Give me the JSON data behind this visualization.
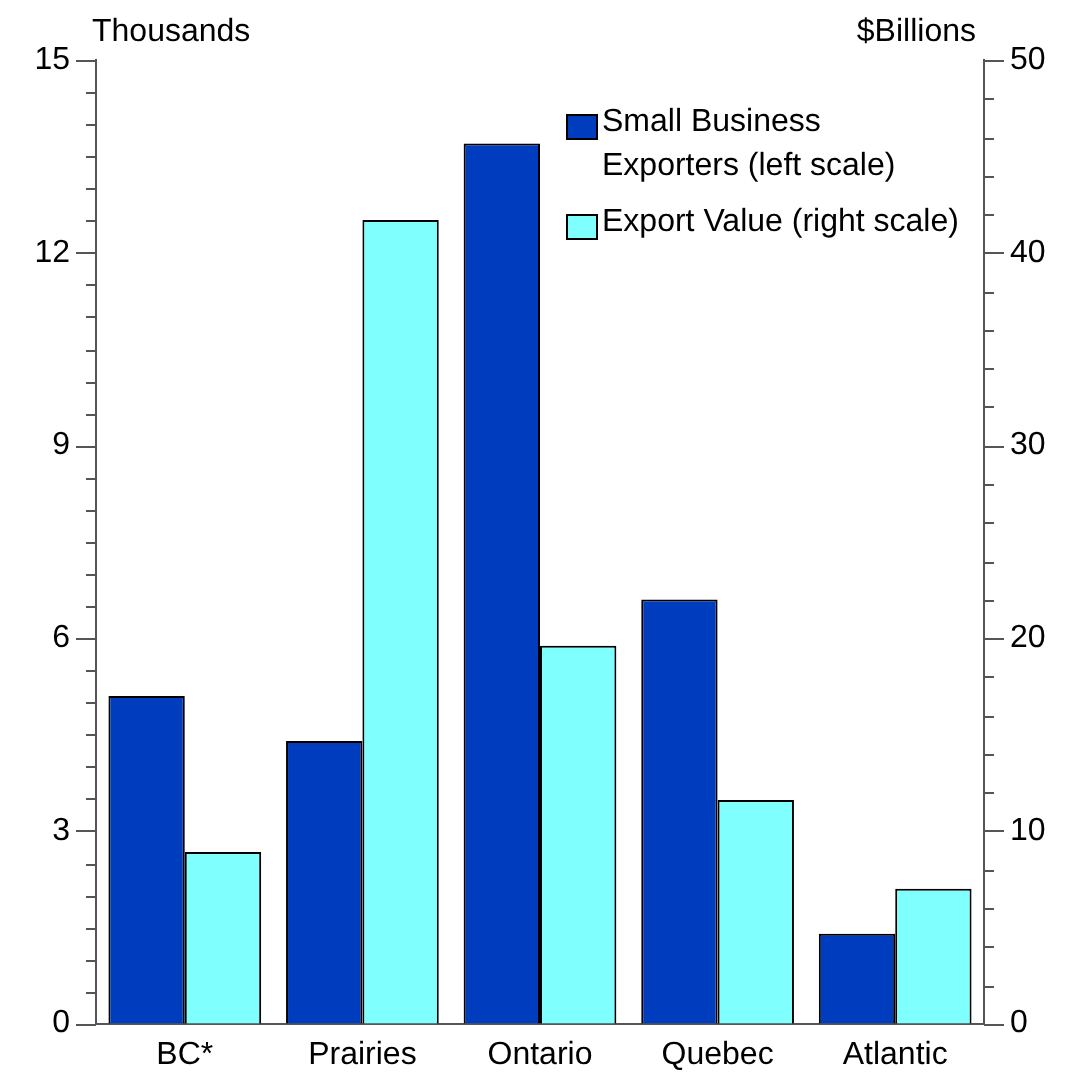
{
  "chart_data": {
    "type": "bar",
    "ylabel": "Thousands",
    "y2label": "$Billions",
    "categories": [
      "BC*",
      "Prairies",
      "Ontario",
      "Quebec",
      "Atlantic"
    ],
    "series": [
      {
        "name": "Small Business Exporters (left scale)",
        "color": "#003cbe",
        "values": [
          5.1,
          4.4,
          13.7,
          6.6,
          1.4
        ]
      },
      {
        "name": "Export Value (right scale)",
        "color": "#80ffff",
        "axis": "y2",
        "values": [
          8.9,
          41.7,
          19.6,
          11.6,
          7.0
        ]
      }
    ],
    "ylim": [
      0,
      15
    ],
    "yticks": [
      0,
      {
        "value": 0.5,
        "label": null
      },
      {
        "value": 1,
        "label": null
      },
      {
        "value": 1.5,
        "label": null
      },
      {
        "value": 2,
        "label": null
      },
      {
        "value": 2.5,
        "label": null
      },
      3,
      {
        "value": 3.5,
        "label": null
      },
      {
        "value": 4,
        "label": null
      },
      {
        "value": 4.5,
        "label": null
      },
      {
        "value": 5,
        "label": null
      },
      {
        "value": 5.5,
        "label": null
      },
      6,
      {
        "value": 6.5,
        "label": null
      },
      {
        "value": 7,
        "label": null
      },
      {
        "value": 7.5,
        "label": null
      },
      {
        "value": 8,
        "label": null
      },
      {
        "value": 8.5,
        "label": null
      },
      9,
      {
        "value": 9.5,
        "label": null
      },
      {
        "value": 10,
        "label": null
      },
      {
        "value": 10.5,
        "label": null
      },
      {
        "value": 11,
        "label": null
      },
      {
        "value": 11.5,
        "label": null
      },
      12,
      {
        "value": 12.5,
        "label": null
      },
      {
        "value": 13,
        "label": null
      },
      {
        "value": 13.5,
        "label": null
      },
      {
        "value": 14,
        "label": null
      },
      {
        "value": 14.5,
        "label": null
      },
      15
    ],
    "y2lim": [
      0,
      50
    ],
    "y2ticks": [
      0,
      {
        "value": 2,
        "label": null
      },
      {
        "value": 4,
        "label": null
      },
      {
        "value": 6,
        "label": null
      },
      {
        "value": 8,
        "label": null
      },
      10,
      {
        "value": 12,
        "label": null
      },
      {
        "value": 14,
        "label": null
      },
      {
        "value": 16,
        "label": null
      },
      {
        "value": 18,
        "label": null
      },
      20,
      {
        "value": 22,
        "label": null
      },
      {
        "value": 24,
        "label": null
      },
      {
        "value": 26,
        "label": null
      },
      {
        "value": 28,
        "label": null
      },
      30,
      {
        "value": 32,
        "label": null
      },
      {
        "value": 34,
        "label": null
      },
      {
        "value": 36,
        "label": null
      },
      {
        "value": 38,
        "label": null
      },
      40,
      {
        "value": 42,
        "label": null
      },
      {
        "value": 44,
        "label": null
      },
      {
        "value": 46,
        "label": null
      },
      {
        "value": 48,
        "label": null
      },
      50
    ],
    "grid": false,
    "legend": "top right"
  }
}
